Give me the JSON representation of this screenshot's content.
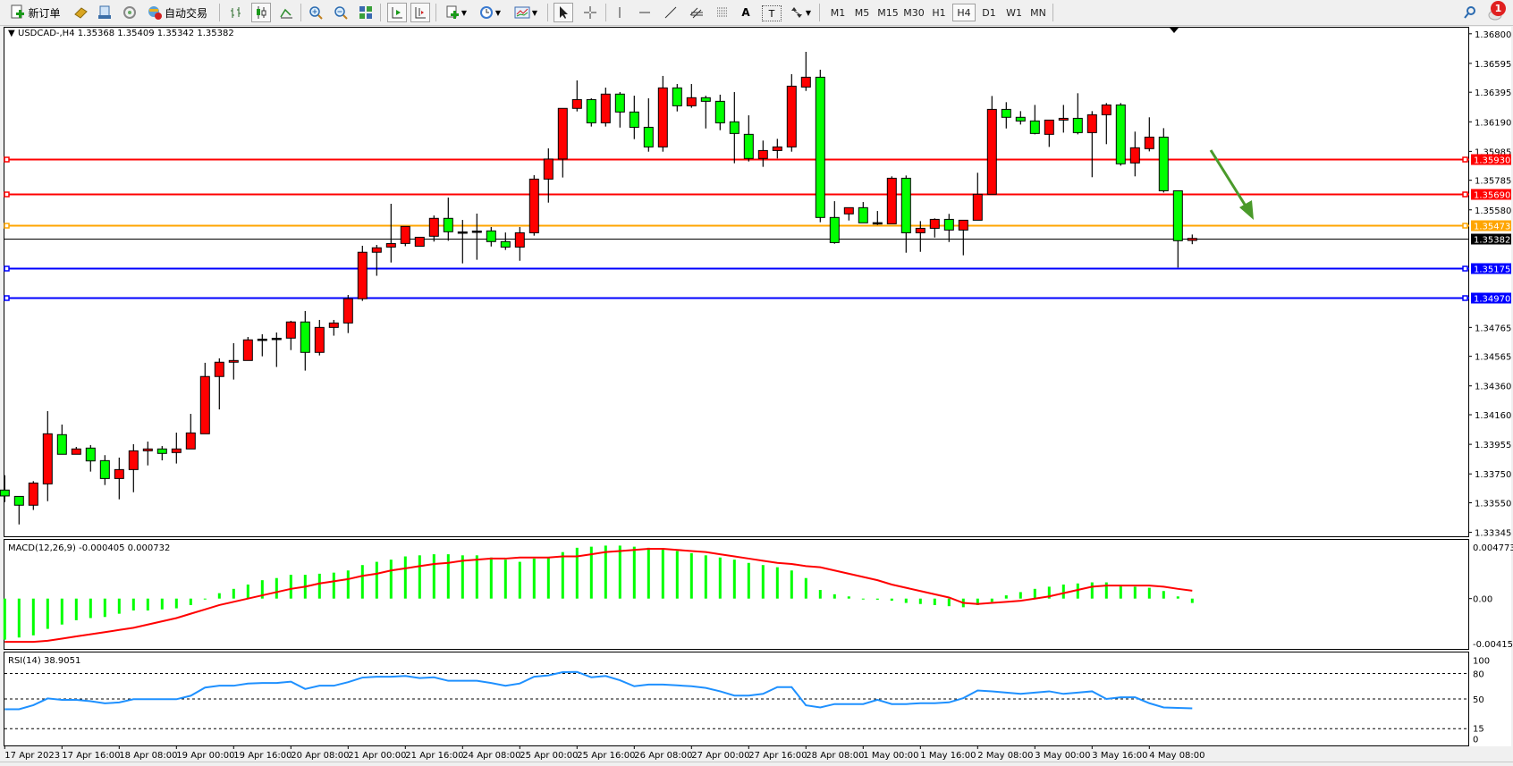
{
  "toolbar": {
    "new_order_label": "新订单",
    "auto_trading_label": "自动交易",
    "icons": [
      "new-order-icon",
      "gold-icon",
      "market-watch-icon",
      "signals-icon",
      "auto-trading-icon",
      "bar-chart-icon",
      "candlestick-icon",
      "line-chart-icon",
      "zoom-in-icon",
      "zoom-out-icon",
      "tile-icon",
      "autoscroll-icon",
      "chart-shift-icon",
      "indicators-icon",
      "periods-icon",
      "templates-icon",
      "cursor-icon",
      "crosshair-icon",
      "vertical-line-icon",
      "horizontal-line-icon",
      "trendline-icon",
      "equidistant-channel-icon",
      "fibonacci-icon",
      "text-icon",
      "text-label-icon",
      "arrows-icon"
    ],
    "text_tool_label": "A",
    "text_label_tool_label": "T",
    "timeframes": [
      "M1",
      "M5",
      "M15",
      "M30",
      "H1",
      "H4",
      "D1",
      "W1",
      "MN"
    ],
    "selected_timeframe": "H4",
    "notification_count": "1"
  },
  "chart": {
    "legend": "USDCAD-,H4  1.35368 1.35409 1.35342 1.35382",
    "colors": {
      "up": "#ff0000",
      "down": "#00ff00",
      "background": "#ffffff",
      "resistance": "#ff0000",
      "pivot": "#ffa500",
      "support": "#0000ff",
      "bid": "#000000",
      "macd_hist": "#00ff00",
      "macd_signal": "#ff0000",
      "rsi": "#1e90ff",
      "arrow": "#4a9a2a"
    }
  },
  "chart_data": [
    {
      "type": "candlestick",
      "symbol": "USDCAD-",
      "timeframe": "H4",
      "ylim": [
        1.33345,
        1.368
      ],
      "y_ticks": [
        "1.36800",
        "1.36595",
        "1.36395",
        "1.36190",
        "1.35985",
        "1.35785",
        "1.35580",
        "1.34765",
        "1.34565",
        "1.34360",
        "1.34160",
        "1.33955",
        "1.33750",
        "1.33550",
        "1.33345"
      ],
      "x_tick_labels": [
        "17 Apr 2023",
        "17 Apr 16:00",
        "18 Apr 08:00",
        "19 Apr 00:00",
        "19 Apr 16:00",
        "20 Apr 08:00",
        "21 Apr 00:00",
        "21 Apr 16:00",
        "24 Apr 08:00",
        "25 Apr 00:00",
        "25 Apr 16:00",
        "26 Apr 08:00",
        "27 Apr 00:00",
        "27 Apr 16:00",
        "28 Apr 08:00",
        "1 May 00:00",
        "1 May 16:00",
        "2 May 08:00",
        "3 May 00:00",
        "3 May 16:00",
        "4 May 08:00"
      ],
      "ohlc_fields": [
        "open",
        "high",
        "low",
        "close"
      ],
      "candles": [
        [
          1.33638,
          1.33741,
          1.33555,
          1.33597
        ],
        [
          1.33594,
          1.33594,
          1.334,
          1.33533
        ],
        [
          1.33533,
          1.337,
          1.335,
          1.33687
        ],
        [
          1.33681,
          1.34185,
          1.33561,
          1.34028
        ],
        [
          1.34022,
          1.34092,
          1.33886,
          1.33886
        ],
        [
          1.33886,
          1.33937,
          1.33886,
          1.33923
        ],
        [
          1.33929,
          1.3395,
          1.33766,
          1.3384
        ],
        [
          1.33842,
          1.3388,
          1.33673,
          1.33718
        ],
        [
          1.33718,
          1.33863,
          1.33574,
          1.3378
        ],
        [
          1.3378,
          1.33956,
          1.33623,
          1.3391
        ],
        [
          1.3391,
          1.33974,
          1.33809,
          1.33923
        ],
        [
          1.33923,
          1.33943,
          1.33844,
          1.33892
        ],
        [
          1.33898,
          1.34036,
          1.33822,
          1.33923
        ],
        [
          1.33923,
          1.34166,
          1.33923,
          1.34034
        ],
        [
          1.34028,
          1.3452,
          1.34028,
          1.34425
        ],
        [
          1.34425,
          1.34551,
          1.34197,
          1.34524
        ],
        [
          1.34524,
          1.34656,
          1.34404,
          1.34536
        ],
        [
          1.34536,
          1.34699,
          1.34536,
          1.34679
        ],
        [
          1.34683,
          1.34718,
          1.34565,
          1.34684
        ],
        [
          1.34689,
          1.3473,
          1.34491,
          1.3469
        ],
        [
          1.34691,
          1.34811,
          1.34608,
          1.34803
        ],
        [
          1.34803,
          1.34879,
          1.34466,
          1.34592
        ],
        [
          1.34592,
          1.34817,
          1.34571,
          1.34765
        ],
        [
          1.34765,
          1.34817,
          1.34708,
          1.34796
        ],
        [
          1.34796,
          1.3499,
          1.34726,
          1.34964
        ],
        [
          1.34964,
          1.35331,
          1.34949,
          1.35286
        ],
        [
          1.35286,
          1.35337,
          1.35123,
          1.35317
        ],
        [
          1.35322,
          1.35622,
          1.35215,
          1.35346
        ],
        [
          1.35347,
          1.35465,
          1.35328,
          1.35465
        ],
        [
          1.35328,
          1.3539,
          1.35328,
          1.3539
        ],
        [
          1.35397,
          1.35541,
          1.3536,
          1.35521
        ],
        [
          1.35521,
          1.35665,
          1.35366,
          1.35428
        ],
        [
          1.35426,
          1.3551,
          1.35209,
          1.35427
        ],
        [
          1.35432,
          1.35554,
          1.35234,
          1.35433
        ],
        [
          1.35434,
          1.35461,
          1.35326,
          1.3536
        ],
        [
          1.3536,
          1.35423,
          1.35302,
          1.35322
        ],
        [
          1.35322,
          1.35461,
          1.35227,
          1.35421
        ],
        [
          1.35421,
          1.3582,
          1.35401,
          1.35793
        ],
        [
          1.35793,
          1.36006,
          1.3563,
          1.35932
        ],
        [
          1.35932,
          1.36283,
          1.35804,
          1.36283
        ],
        [
          1.36283,
          1.36477,
          1.36262,
          1.36344
        ],
        [
          1.36344,
          1.36353,
          1.36157,
          1.36183
        ],
        [
          1.36183,
          1.36427,
          1.36157,
          1.36382
        ],
        [
          1.36382,
          1.36396,
          1.3615,
          1.36258
        ],
        [
          1.36258,
          1.36371,
          1.3607,
          1.36152
        ],
        [
          1.36152,
          1.36353,
          1.35983,
          1.36016
        ],
        [
          1.36016,
          1.36508,
          1.35983,
          1.36425
        ],
        [
          1.36425,
          1.36452,
          1.36262,
          1.36301
        ],
        [
          1.36301,
          1.36452,
          1.36287,
          1.36357
        ],
        [
          1.36357,
          1.36371,
          1.36144,
          1.36332
        ],
        [
          1.36332,
          1.36378,
          1.36132,
          1.36183
        ],
        [
          1.3619,
          1.36396,
          1.35903,
          1.36109
        ],
        [
          1.36103,
          1.36235,
          1.35915,
          1.35936
        ],
        [
          1.35936,
          1.3606,
          1.35878,
          1.35991
        ],
        [
          1.35991,
          1.36072,
          1.35936,
          1.36016
        ],
        [
          1.36016,
          1.3652,
          1.35983,
          1.36437
        ],
        [
          1.36431,
          1.36675,
          1.36404,
          1.36499
        ],
        [
          1.36499,
          1.36551,
          1.35494,
          1.35527
        ],
        [
          1.35527,
          1.3564,
          1.35345,
          1.35353
        ],
        [
          1.35552,
          1.35595,
          1.35506,
          1.35595
        ],
        [
          1.35595,
          1.35634,
          1.3549,
          1.3549
        ],
        [
          1.3549,
          1.35572,
          1.35475,
          1.35491
        ],
        [
          1.35483,
          1.35812,
          1.35483,
          1.35799
        ],
        [
          1.35799,
          1.35818,
          1.35283,
          1.35421
        ],
        [
          1.35421,
          1.35502,
          1.35289,
          1.35452
        ],
        [
          1.35452,
          1.35521,
          1.35388,
          1.35514
        ],
        [
          1.35514,
          1.35552,
          1.35357,
          1.3544
        ],
        [
          1.3544,
          1.35508,
          1.35265,
          1.35508
        ],
        [
          1.35508,
          1.35837,
          1.35508,
          1.35688
        ],
        [
          1.35688,
          1.36369,
          1.35688,
          1.36276
        ],
        [
          1.36276,
          1.36326,
          1.36144,
          1.36221
        ],
        [
          1.36221,
          1.36264,
          1.36171,
          1.36196
        ],
        [
          1.36196,
          1.36307,
          1.36103,
          1.36109
        ],
        [
          1.36103,
          1.36202,
          1.36016,
          1.36202
        ],
        [
          1.36202,
          1.36307,
          1.36115,
          1.36214
        ],
        [
          1.36214,
          1.36388,
          1.36103,
          1.36115
        ],
        [
          1.36115,
          1.36264,
          1.35806,
          1.36239
        ],
        [
          1.36239,
          1.3632,
          1.36035,
          1.36307
        ],
        [
          1.36307,
          1.3632,
          1.35886,
          1.35899
        ],
        [
          1.35905,
          1.36122,
          1.35812,
          1.3601
        ],
        [
          1.36004,
          1.36221,
          1.35985,
          1.36084
        ],
        [
          1.36084,
          1.36146,
          1.357,
          1.35712
        ],
        [
          1.35712,
          1.35712,
          1.3518,
          1.35366
        ],
        [
          1.35368,
          1.35409,
          1.35342,
          1.35382
        ]
      ],
      "horizontal_lines": [
        {
          "price": "1.35930",
          "color": "#ff0000"
        },
        {
          "price": "1.35690",
          "color": "#ff0000"
        },
        {
          "price": "1.35473",
          "color": "#ffa500"
        },
        {
          "price": "1.35175",
          "color": "#0000ff"
        },
        {
          "price": "1.34970",
          "color": "#0000ff"
        }
      ],
      "bid": {
        "price": "1.35382",
        "color": "#000000"
      },
      "annotation": {
        "type": "arrow",
        "direction": "down",
        "color": "#4a9a2a"
      }
    },
    {
      "type": "bar+line",
      "title": "MACD(12,26,9) -0.000405 0.000732",
      "ylim": [
        -0.004154,
        0.004773
      ],
      "y_ticks": [
        "0.004773",
        "0.00",
        "-0.004154"
      ],
      "histogram": [
        -0.0038,
        -0.0036,
        -0.0034,
        -0.0028,
        -0.0024,
        -0.002,
        -0.0018,
        -0.0017,
        -0.0014,
        -0.0011,
        -0.0011,
        -0.001,
        -0.0009,
        -0.0006,
        0.0,
        0.0005,
        0.0009,
        0.0013,
        0.0017,
        0.0019,
        0.0022,
        0.0022,
        0.0023,
        0.0024,
        0.0026,
        0.0031,
        0.0034,
        0.0036,
        0.0039,
        0.004,
        0.0041,
        0.0041,
        0.004,
        0.004,
        0.0038,
        0.0036,
        0.0034,
        0.0037,
        0.0038,
        0.0043,
        0.0047,
        0.0048,
        0.0049,
        0.0049,
        0.0048,
        0.0047,
        0.0046,
        0.0044,
        0.0042,
        0.004,
        0.0038,
        0.0036,
        0.0033,
        0.0031,
        0.0029,
        0.0026,
        0.0019,
        0.0008,
        0.0004,
        0.0002,
        0.0,
        -0.0001,
        -0.0002,
        -0.0004,
        -0.0005,
        -0.0006,
        -0.0007,
        -0.0008,
        -0.0006,
        -0.0003,
        0.0003,
        0.0006,
        0.0009,
        0.0011,
        0.0013,
        0.0014,
        0.0015,
        0.0015,
        0.0012,
        0.0011,
        0.001,
        0.0007,
        0.0002,
        -0.000405
      ],
      "signal": [
        -0.004,
        -0.004,
        -0.004,
        -0.0039,
        -0.0037,
        -0.0035,
        -0.0033,
        -0.0031,
        -0.0029,
        -0.0027,
        -0.0024,
        -0.0021,
        -0.0018,
        -0.0014,
        -0.001,
        -0.0006,
        -0.0003,
        0.0,
        0.0003,
        0.0006,
        0.0009,
        0.0011,
        0.0014,
        0.0016,
        0.0018,
        0.0021,
        0.0023,
        0.0026,
        0.0028,
        0.003,
        0.0032,
        0.0033,
        0.0035,
        0.0036,
        0.0037,
        0.0037,
        0.0038,
        0.0038,
        0.0038,
        0.0039,
        0.0039,
        0.0041,
        0.0043,
        0.0044,
        0.0045,
        0.0046,
        0.0046,
        0.0045,
        0.0044,
        0.0043,
        0.0041,
        0.0039,
        0.0037,
        0.0035,
        0.0033,
        0.0032,
        0.003,
        0.0029,
        0.0026,
        0.0023,
        0.002,
        0.0017,
        0.0013,
        0.001,
        0.0007,
        0.0004,
        0.0001,
        -0.0004,
        -0.0005,
        -0.0004,
        -0.0003,
        -0.0002,
        0.0,
        0.0002,
        0.0005,
        0.0008,
        0.0011,
        0.0012,
        0.0012,
        0.0012,
        0.0012,
        0.0011,
        0.0009,
        0.000732
      ]
    },
    {
      "type": "line",
      "title": "RSI(14) 38.9051",
      "ylim": [
        0,
        100
      ],
      "y_ticks": [
        "100",
        "80",
        "50",
        "15",
        "0"
      ],
      "levels": [
        80,
        50,
        15
      ],
      "values": [
        37.9,
        37.9,
        42.7,
        50.6,
        49.0,
        49.0,
        47.4,
        44.9,
        45.9,
        49.7,
        49.7,
        49.7,
        49.7,
        53.8,
        63.4,
        65.6,
        65.6,
        68.2,
        68.8,
        68.8,
        70.4,
        61.8,
        65.6,
        65.6,
        69.8,
        75.2,
        76.2,
        76.2,
        77.1,
        74.6,
        75.5,
        71.4,
        71.4,
        71.4,
        68.8,
        65.6,
        68.2,
        76.2,
        77.8,
        81.6,
        81.9,
        75.5,
        77.1,
        72.0,
        65,
        67,
        67,
        66,
        65,
        63,
        59,
        54,
        54,
        56,
        64,
        64,
        42.5,
        40,
        44,
        44,
        44,
        49,
        44,
        44,
        45,
        45,
        46,
        51,
        60,
        59,
        57.5,
        56,
        57.5,
        59,
        56,
        57.5,
        59,
        50,
        52,
        52,
        45,
        40,
        39.5,
        38.9051
      ]
    }
  ]
}
